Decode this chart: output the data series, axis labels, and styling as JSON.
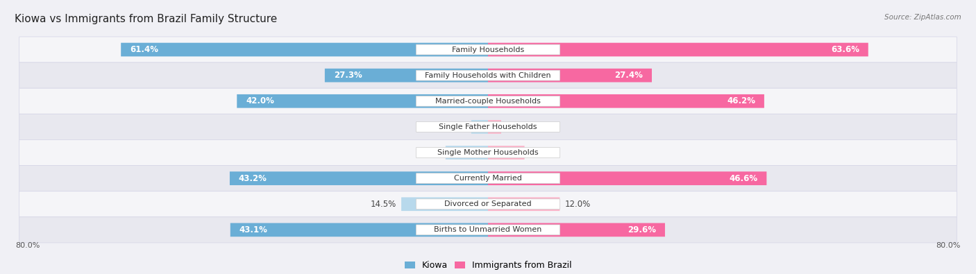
{
  "title": "Kiowa vs Immigrants from Brazil Family Structure",
  "source": "Source: ZipAtlas.com",
  "categories": [
    "Family Households",
    "Family Households with Children",
    "Married-couple Households",
    "Single Father Households",
    "Single Mother Households",
    "Currently Married",
    "Divorced or Separated",
    "Births to Unmarried Women"
  ],
  "kiowa_values": [
    61.4,
    27.3,
    42.0,
    2.8,
    7.1,
    43.2,
    14.5,
    43.1
  ],
  "brazil_values": [
    63.6,
    27.4,
    46.2,
    2.2,
    6.1,
    46.6,
    12.0,
    29.6
  ],
  "kiowa_color_strong": "#6aaed6",
  "kiowa_color_light": "#b8d9ec",
  "brazil_color_strong": "#f768a1",
  "brazil_color_light": "#fbb4c9",
  "axis_max": 80.0,
  "background_color": "#f0f0f5",
  "row_colors": [
    "#f5f5f8",
    "#e8e8ef"
  ],
  "label_bg": "#ffffff",
  "title_fontsize": 11,
  "bar_fontsize": 8.5,
  "category_fontsize": 8,
  "legend_fontsize": 9,
  "axis_label_fontsize": 8,
  "color_threshold": 15
}
